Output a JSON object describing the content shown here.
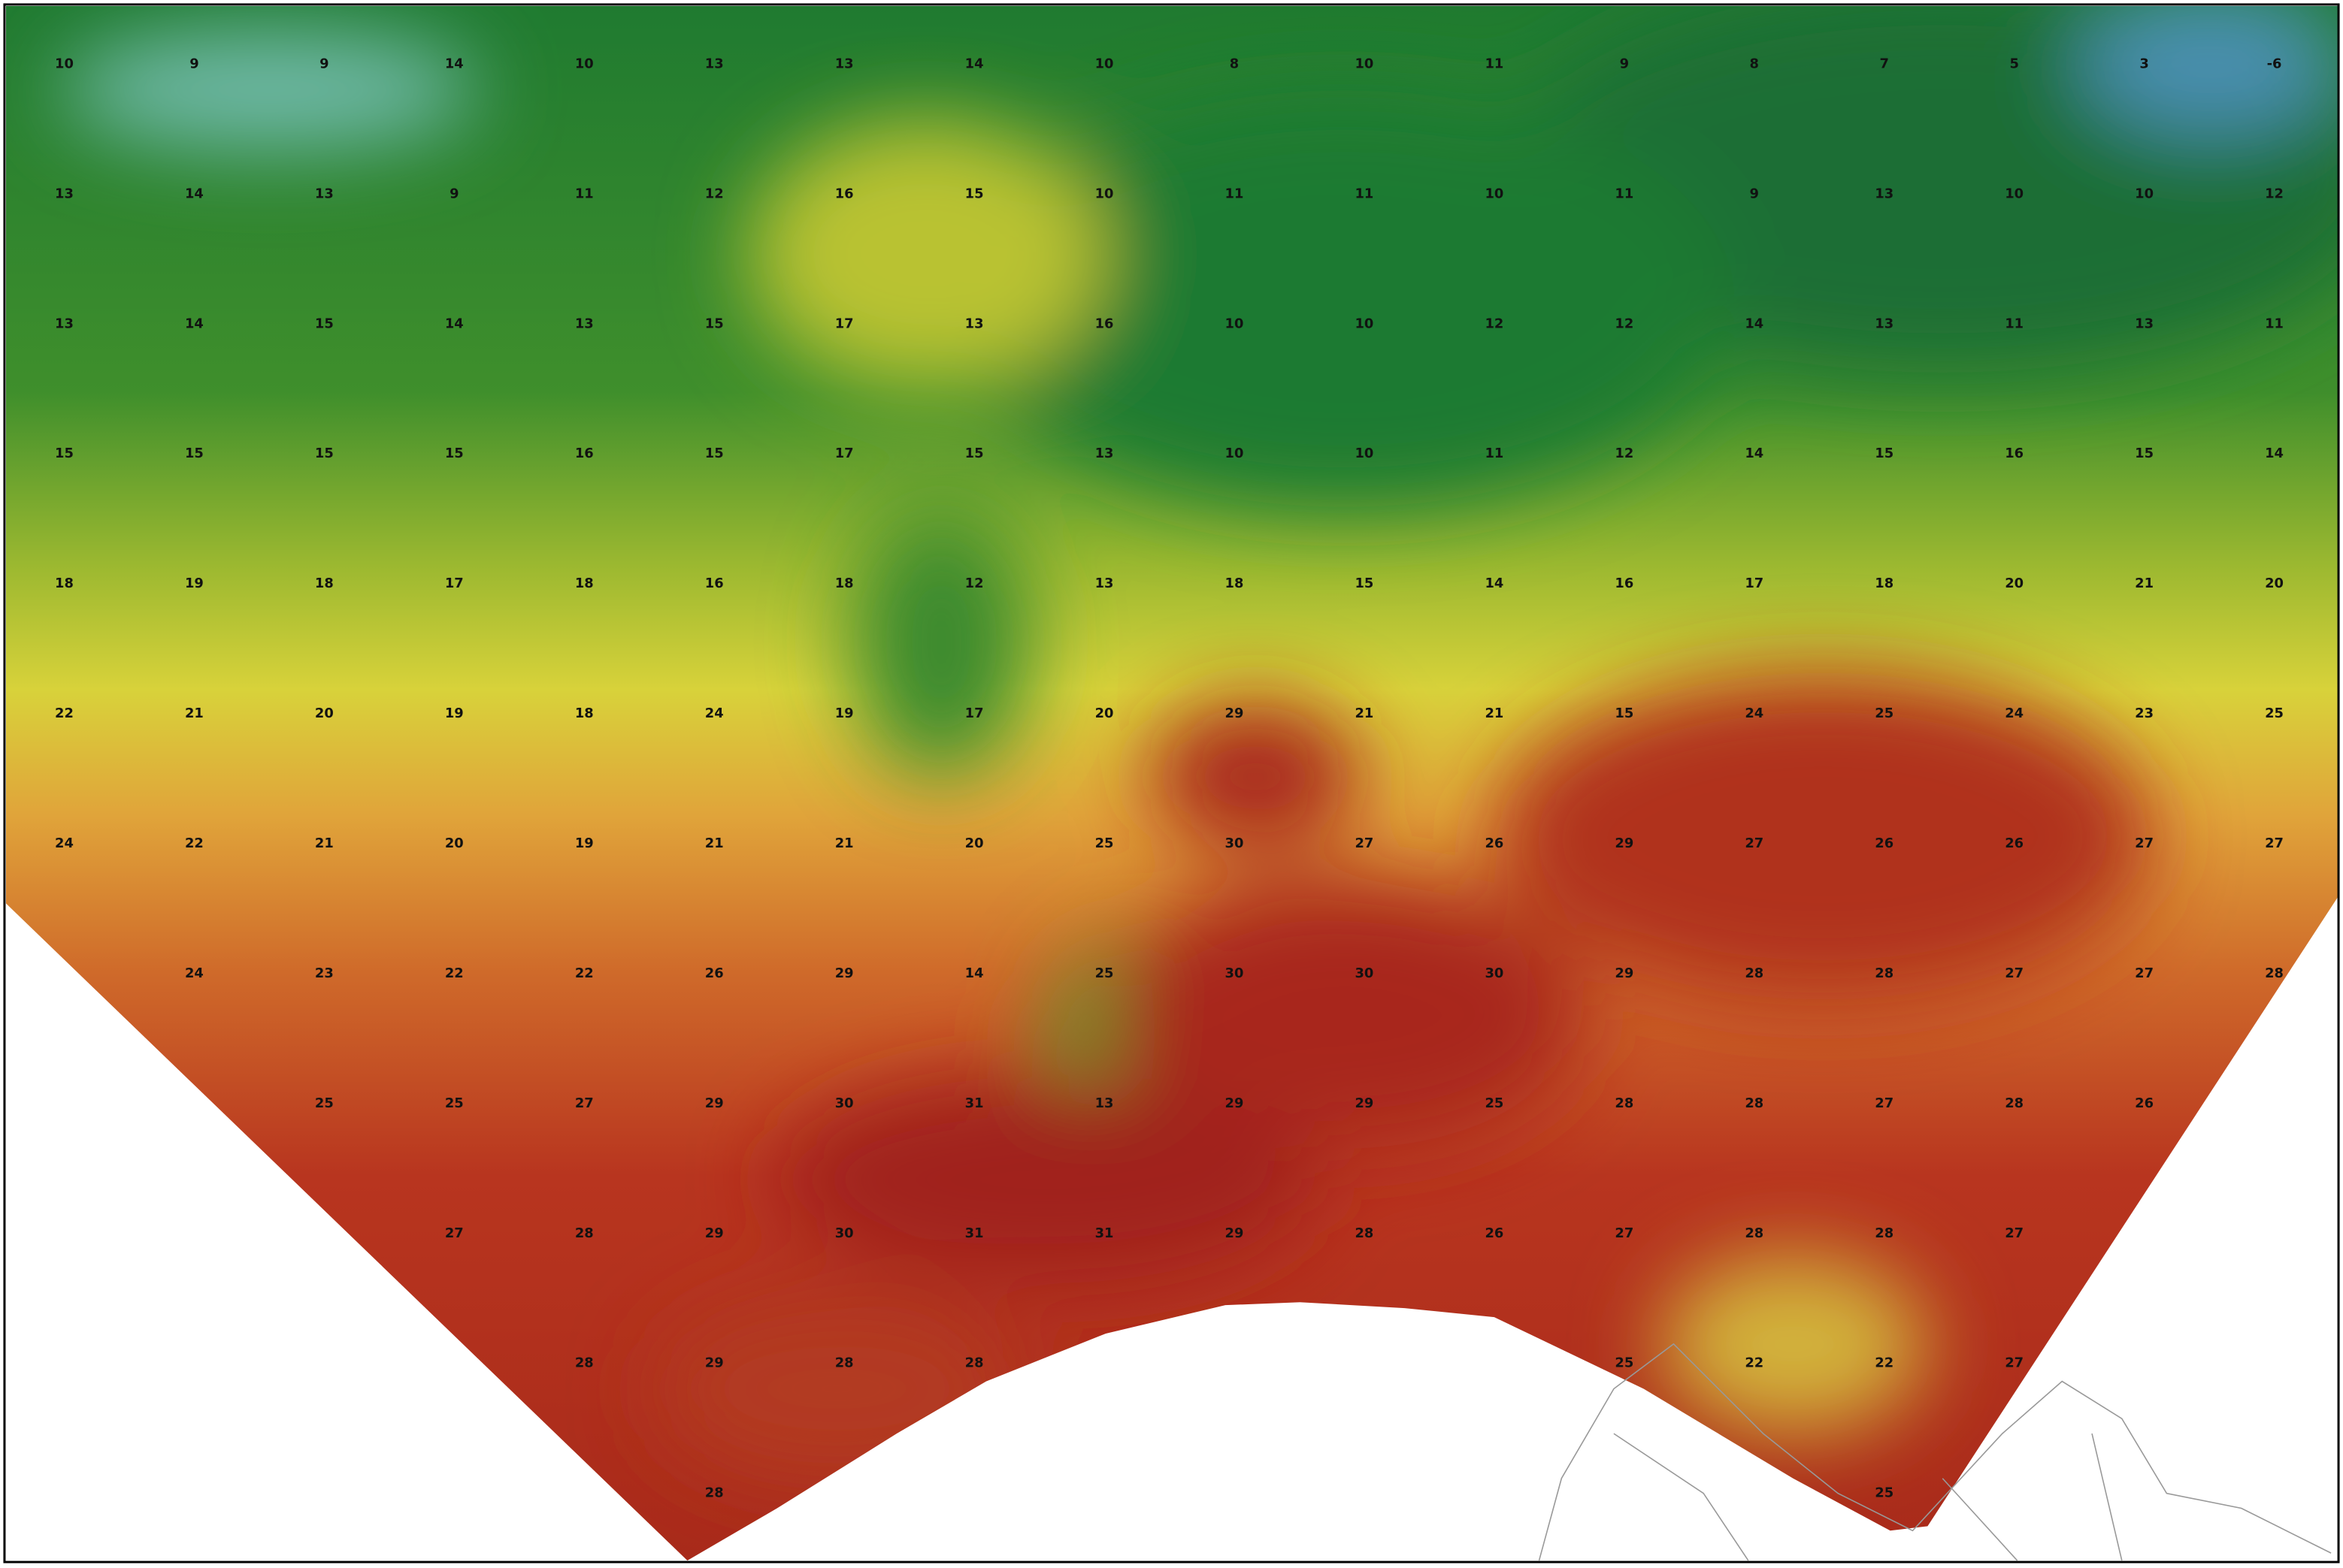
{
  "labels": {
    "rows": [
      [
        10,
        9,
        9,
        14,
        10,
        13,
        13,
        14,
        10,
        8,
        10,
        11,
        9,
        8,
        7,
        5,
        3,
        -6
      ],
      [
        13,
        14,
        13,
        9,
        11,
        12,
        16,
        15,
        10,
        11,
        11,
        10,
        11,
        9,
        13,
        10,
        10,
        12
      ],
      [
        13,
        14,
        15,
        14,
        13,
        15,
        17,
        13,
        16,
        10,
        10,
        12,
        12,
        14,
        13,
        11,
        13,
        11
      ],
      [
        15,
        15,
        15,
        15,
        16,
        15,
        17,
        15,
        13,
        10,
        10,
        11,
        12,
        14,
        15,
        16,
        15,
        14
      ],
      [
        18,
        19,
        18,
        17,
        18,
        16,
        18,
        12,
        13,
        18,
        15,
        14,
        16,
        17,
        18,
        20,
        21,
        20
      ],
      [
        22,
        21,
        20,
        19,
        18,
        24,
        19,
        17,
        20,
        29,
        21,
        21,
        15,
        24,
        25,
        24,
        23,
        25
      ],
      [
        24,
        22,
        21,
        20,
        19,
        21,
        21,
        20,
        25,
        30,
        27,
        26,
        29,
        27,
        26,
        26,
        27,
        27
      ],
      [
        null,
        24,
        23,
        22,
        22,
        26,
        29,
        14,
        25,
        30,
        30,
        30,
        29,
        28,
        28,
        27,
        27,
        28
      ],
      [
        null,
        null,
        25,
        25,
        27,
        29,
        30,
        31,
        13,
        29,
        29,
        25,
        28,
        28,
        27,
        28,
        26,
        null
      ],
      [
        null,
        null,
        null,
        27,
        28,
        29,
        30,
        31,
        31,
        29,
        28,
        26,
        27,
        28,
        28,
        27,
        null,
        null
      ],
      [
        null,
        null,
        null,
        null,
        28,
        29,
        28,
        28,
        null,
        null,
        null,
        null,
        25,
        22,
        22,
        27,
        null,
        null
      ],
      [
        null,
        null,
        null,
        null,
        null,
        28,
        null,
        null,
        null,
        null,
        null,
        null,
        null,
        null,
        25,
        null,
        null,
        null
      ]
    ]
  }
}
